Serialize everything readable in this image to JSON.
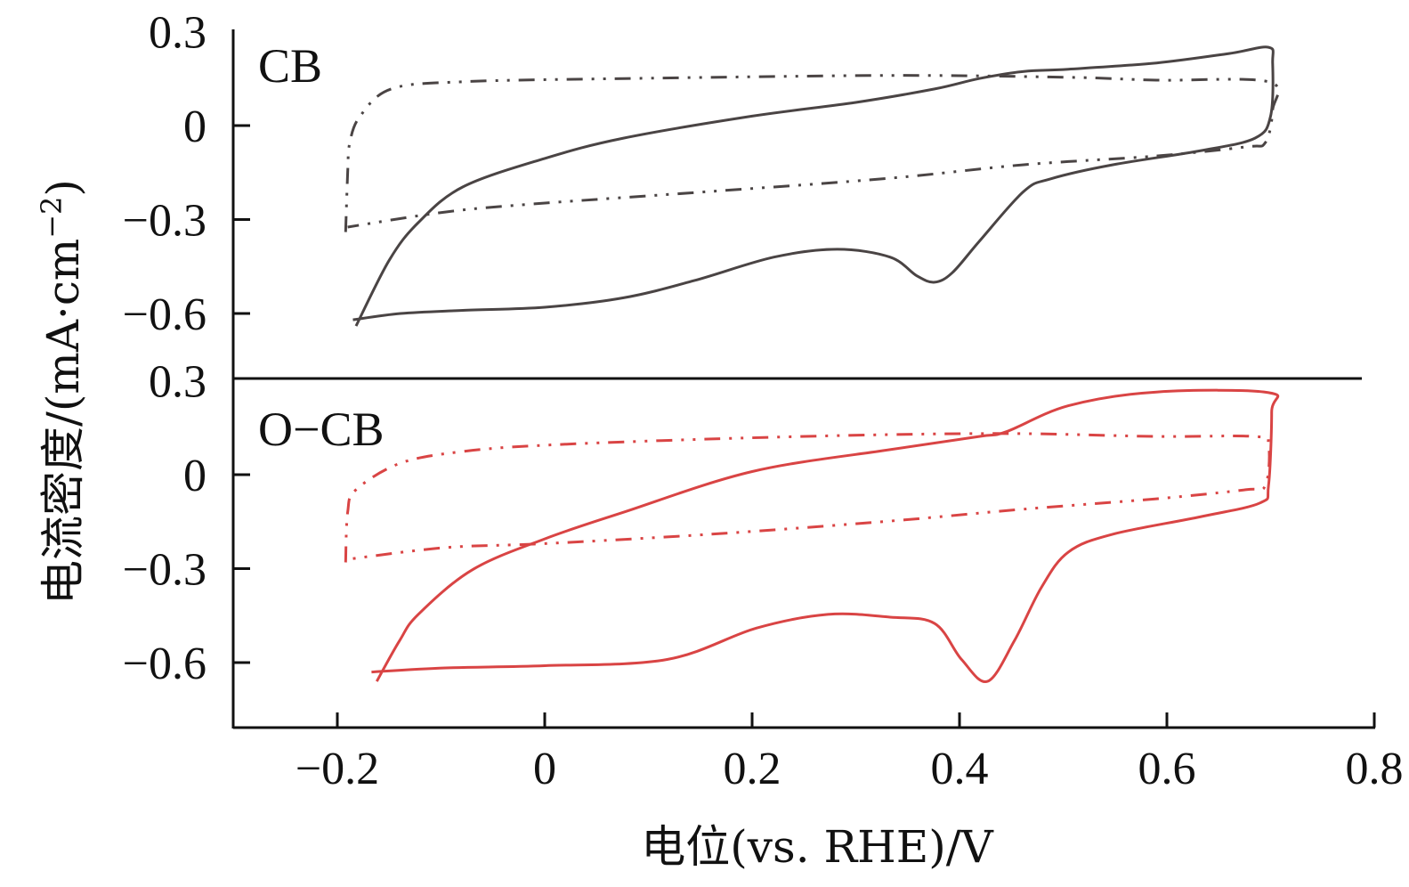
{
  "chart_data": [
    {
      "type": "line",
      "panel_label": "CB",
      "color": "#4a4444",
      "xlim": [
        -0.3,
        0.8
      ],
      "ylim": [
        -0.8,
        0.3
      ],
      "yticks": [
        "0.3",
        "0",
        "−0.3",
        "−0.6"
      ],
      "yticks_values": [
        0.3,
        0,
        -0.3,
        -0.6
      ],
      "series": [
        {
          "name": "CB solid",
          "style": "solid",
          "points": [
            [
              -0.182,
              -0.64
            ],
            [
              -0.15,
              -0.43
            ],
            [
              -0.122,
              -0.31
            ],
            [
              -0.079,
              -0.196
            ],
            [
              0,
              -0.105
            ],
            [
              0.076,
              -0.04
            ],
            [
              0.2,
              0.03
            ],
            [
              0.3,
              0.074
            ],
            [
              0.376,
              0.117
            ],
            [
              0.419,
              0.15
            ],
            [
              0.462,
              0.173
            ],
            [
              0.505,
              0.18
            ],
            [
              0.59,
              0.2
            ],
            [
              0.66,
              0.23
            ],
            [
              0.698,
              0.25
            ],
            [
              0.702,
              0.2
            ],
            [
              0.7,
              0.03
            ],
            [
              0.685,
              -0.04
            ],
            [
              0.633,
              -0.08
            ],
            [
              0.548,
              -0.125
            ],
            [
              0.488,
              -0.17
            ],
            [
              0.462,
              -0.21
            ],
            [
              0.419,
              -0.37
            ],
            [
              0.393,
              -0.47
            ],
            [
              0.376,
              -0.5
            ],
            [
              0.359,
              -0.48
            ],
            [
              0.333,
              -0.42
            ],
            [
              0.282,
              -0.395
            ],
            [
              0.221,
              -0.42
            ],
            [
              0.144,
              -0.495
            ],
            [
              0.076,
              -0.55
            ],
            [
              0,
              -0.58
            ],
            [
              -0.079,
              -0.59
            ],
            [
              -0.139,
              -0.6
            ],
            [
              -0.185,
              -0.62
            ]
          ]
        },
        {
          "name": "CB dash-dot",
          "style": "dash-dot-dot",
          "points": [
            [
              -0.192,
              -0.34
            ],
            [
              -0.19,
              -0.15
            ],
            [
              -0.188,
              -0.054
            ],
            [
              -0.178,
              0.03
            ],
            [
              -0.148,
              0.117
            ],
            [
              -0.079,
              0.14
            ],
            [
              0.076,
              0.15
            ],
            [
              0.333,
              0.16
            ],
            [
              0.505,
              0.154
            ],
            [
              0.59,
              0.145
            ],
            [
              0.698,
              0.14
            ],
            [
              0.702,
              0.05
            ],
            [
              0.695,
              -0.054
            ],
            [
              0.676,
              -0.068
            ],
            [
              0.59,
              -0.097
            ],
            [
              0.462,
              -0.125
            ],
            [
              0.333,
              -0.168
            ],
            [
              0.161,
              -0.21
            ],
            [
              -0.01,
              -0.25
            ],
            [
              -0.096,
              -0.276
            ],
            [
              -0.19,
              -0.324
            ]
          ]
        }
      ]
    },
    {
      "type": "line",
      "panel_label": "O−CB",
      "color": "#d94444",
      "xlim": [
        -0.3,
        0.8
      ],
      "ylim": [
        -0.8,
        0.3
      ],
      "yticks": [
        "0.3",
        "0",
        "−0.3",
        "−0.6"
      ],
      "yticks_values": [
        0.3,
        0,
        -0.3,
        -0.6
      ],
      "xticks": [
        "−0.2",
        "0",
        "0.2",
        "0.4",
        "0.6",
        "0.8"
      ],
      "xticks_values": [
        -0.2,
        0,
        0.2,
        0.4,
        0.6,
        0.8
      ],
      "series": [
        {
          "name": "O−CB solid",
          "style": "solid",
          "points": [
            [
              -0.162,
              -0.66
            ],
            [
              -0.14,
              -0.53
            ],
            [
              -0.122,
              -0.446
            ],
            [
              -0.07,
              -0.304
            ],
            [
              0,
              -0.205
            ],
            [
              0.076,
              -0.12
            ],
            [
              0.2,
              0.01
            ],
            [
              0.333,
              0.08
            ],
            [
              0.419,
              0.122
            ],
            [
              0.445,
              0.137
            ],
            [
              0.505,
              0.22
            ],
            [
              0.59,
              0.264
            ],
            [
              0.698,
              0.262
            ],
            [
              0.701,
              0.2
            ],
            [
              0.698,
              -0.034
            ],
            [
              0.69,
              -0.09
            ],
            [
              0.633,
              -0.134
            ],
            [
              0.548,
              -0.19
            ],
            [
              0.505,
              -0.247
            ],
            [
              0.479,
              -0.36
            ],
            [
              0.453,
              -0.53
            ],
            [
              0.427,
              -0.66
            ],
            [
              0.402,
              -0.59
            ],
            [
              0.376,
              -0.475
            ],
            [
              0.333,
              -0.455
            ],
            [
              0.273,
              -0.446
            ],
            [
              0.204,
              -0.49
            ],
            [
              0.118,
              -0.59
            ],
            [
              0,
              -0.61
            ],
            [
              -0.096,
              -0.617
            ],
            [
              -0.167,
              -0.63
            ]
          ]
        },
        {
          "name": "O−CB dash-dot",
          "style": "dash-dot-dot",
          "points": [
            [
              -0.192,
              -0.28
            ],
            [
              -0.19,
              -0.12
            ],
            [
              -0.182,
              -0.048
            ],
            [
              -0.139,
              0.037
            ],
            [
              -0.079,
              0.074
            ],
            [
              0,
              0.094
            ],
            [
              0.161,
              0.114
            ],
            [
              0.333,
              0.128
            ],
            [
              0.462,
              0.131
            ],
            [
              0.59,
              0.122
            ],
            [
              0.685,
              0.122
            ],
            [
              0.698,
              0.094
            ],
            [
              0.695,
              -0.034
            ],
            [
              0.676,
              -0.048
            ],
            [
              0.59,
              -0.077
            ],
            [
              0.462,
              -0.11
            ],
            [
              0.333,
              -0.148
            ],
            [
              0.161,
              -0.19
            ],
            [
              0,
              -0.22
            ],
            [
              -0.096,
              -0.233
            ],
            [
              -0.19,
              -0.27
            ]
          ]
        }
      ]
    }
  ],
  "axes": {
    "xlabel": "电位(vs. RHE)/V",
    "ylabel": "电流密度/(mA·cm",
    "ylabel_sup": "−2",
    "ylabel_close": ")"
  }
}
